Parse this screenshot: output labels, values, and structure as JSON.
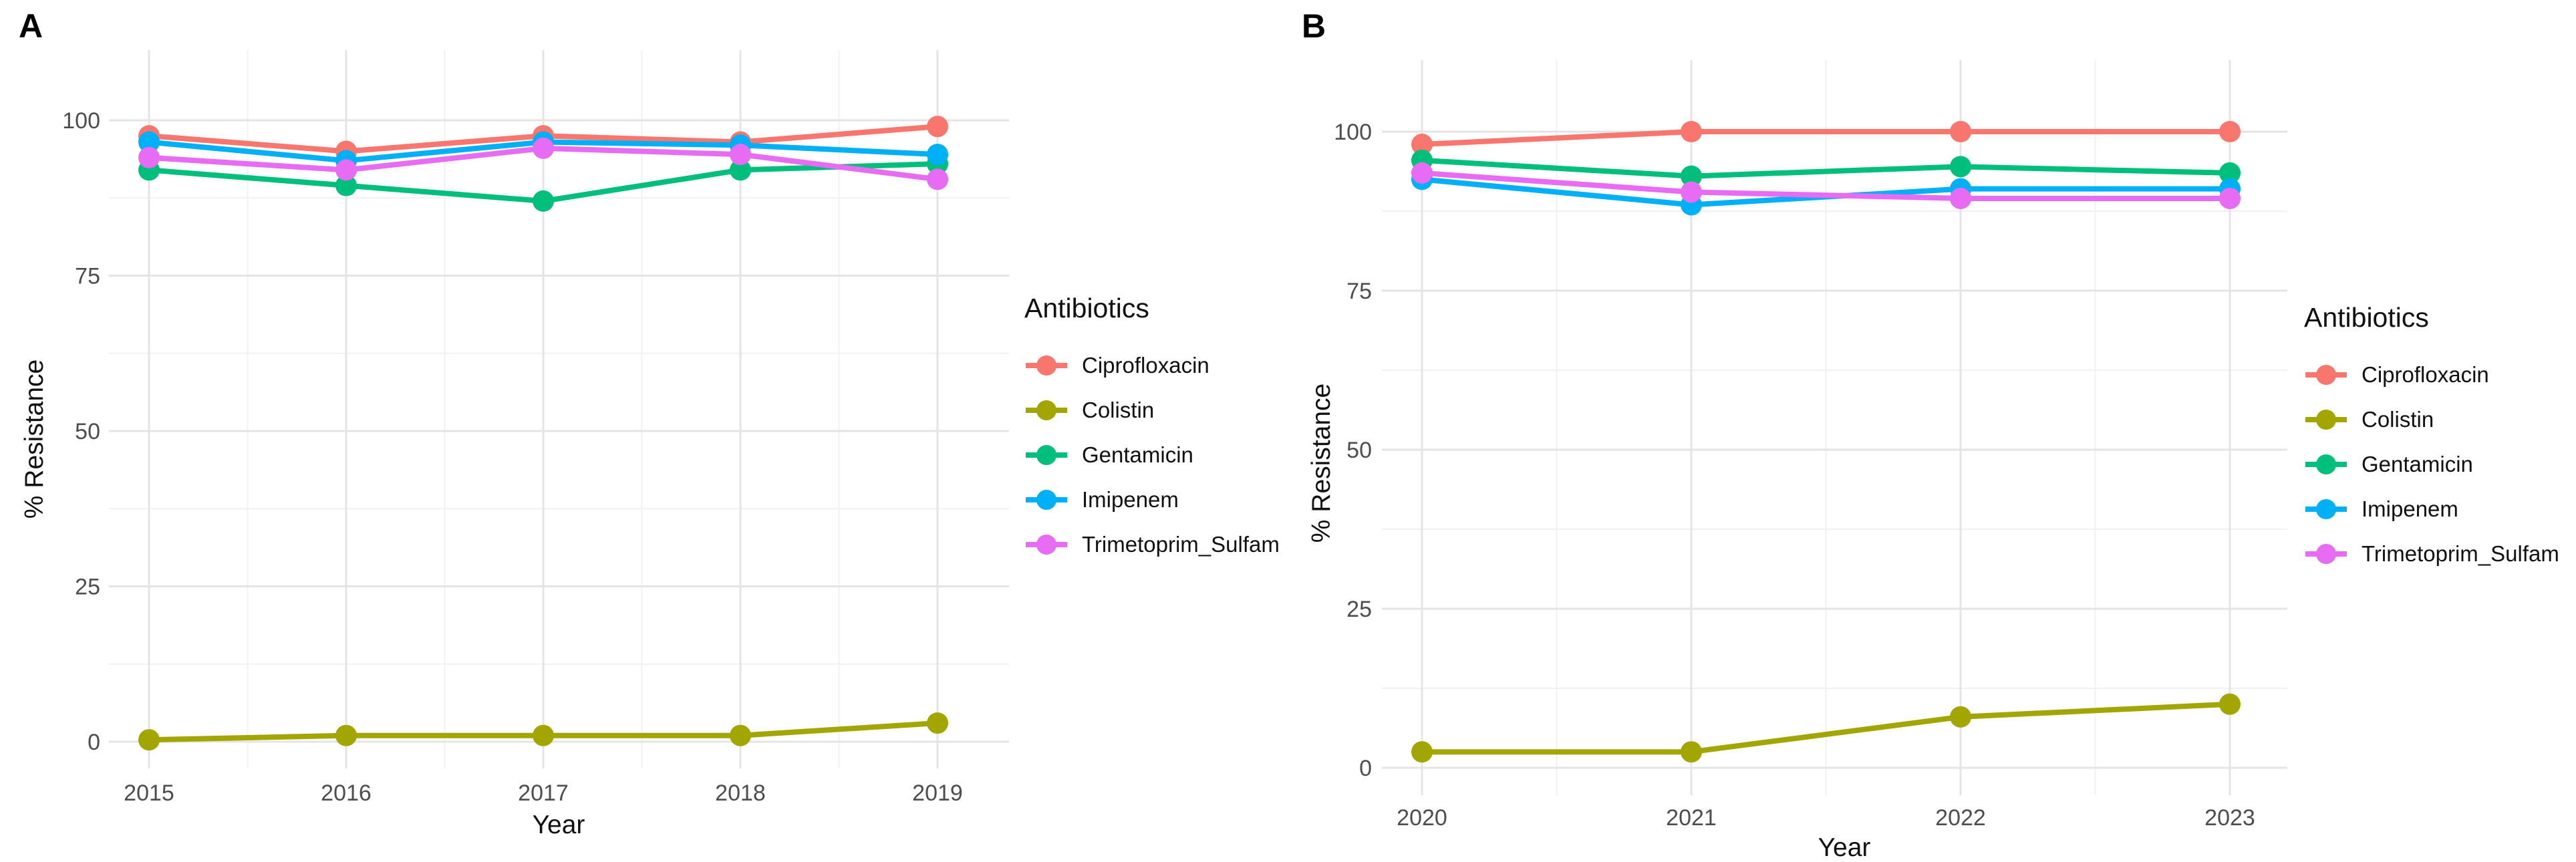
{
  "figure": {
    "background": "#ffffff",
    "grid_major_color": "#e4e4e4",
    "grid_minor_color": "#f1f1f1",
    "tick_label_color": "#4d4d4d",
    "text_color": "#111111"
  },
  "chart_data": [
    {
      "type": "line",
      "label": "A",
      "title": "",
      "xlabel": "Year",
      "ylabel": "% Resistance",
      "legend_title": "Antibiotics",
      "legend_position": "right",
      "grid": true,
      "x": [
        2015,
        2016,
        2017,
        2018,
        2019
      ],
      "yticks": [
        0,
        25,
        50,
        75,
        100
      ],
      "ylim": [
        0,
        100
      ],
      "series": [
        {
          "name": "Ciprofloxacin",
          "color": "#F8766D",
          "values": [
            97.5,
            95,
            97.5,
            96.5,
            99
          ]
        },
        {
          "name": "Colistin",
          "color": "#A3A500",
          "values": [
            0.3,
            1,
            1,
            1,
            3
          ]
        },
        {
          "name": "Gentamicin",
          "color": "#00BF7D",
          "values": [
            92,
            89.5,
            87,
            92,
            93
          ]
        },
        {
          "name": "Imipenem",
          "color": "#00B0F6",
          "values": [
            96.5,
            93.5,
            96.5,
            96,
            94.5
          ]
        },
        {
          "name": "Trimetoprim_Sulfam",
          "color": "#E76BF3",
          "values": [
            94,
            92,
            95.5,
            94.5,
            90.5
          ]
        }
      ]
    },
    {
      "type": "line",
      "label": "B",
      "title": "",
      "xlabel": "Year",
      "ylabel": "% Resistance",
      "legend_title": "Antibiotics",
      "legend_position": "right",
      "grid": true,
      "x": [
        2020,
        2021,
        2022,
        2023
      ],
      "yticks": [
        0,
        25,
        50,
        75,
        100
      ],
      "ylim": [
        0,
        100
      ],
      "series": [
        {
          "name": "Ciprofloxacin",
          "color": "#F8766D",
          "values": [
            98,
            100,
            100,
            100
          ]
        },
        {
          "name": "Colistin",
          "color": "#A3A500",
          "values": [
            2.5,
            2.5,
            8,
            10
          ]
        },
        {
          "name": "Gentamicin",
          "color": "#00BF7D",
          "values": [
            95.5,
            93,
            94.5,
            93.5
          ]
        },
        {
          "name": "Imipenem",
          "color": "#00B0F6",
          "values": [
            92.5,
            88.5,
            91,
            91
          ]
        },
        {
          "name": "Trimetoprim_Sulfam",
          "color": "#E76BF3",
          "values": [
            93.5,
            90.5,
            89.5,
            89.5
          ]
        }
      ]
    }
  ]
}
